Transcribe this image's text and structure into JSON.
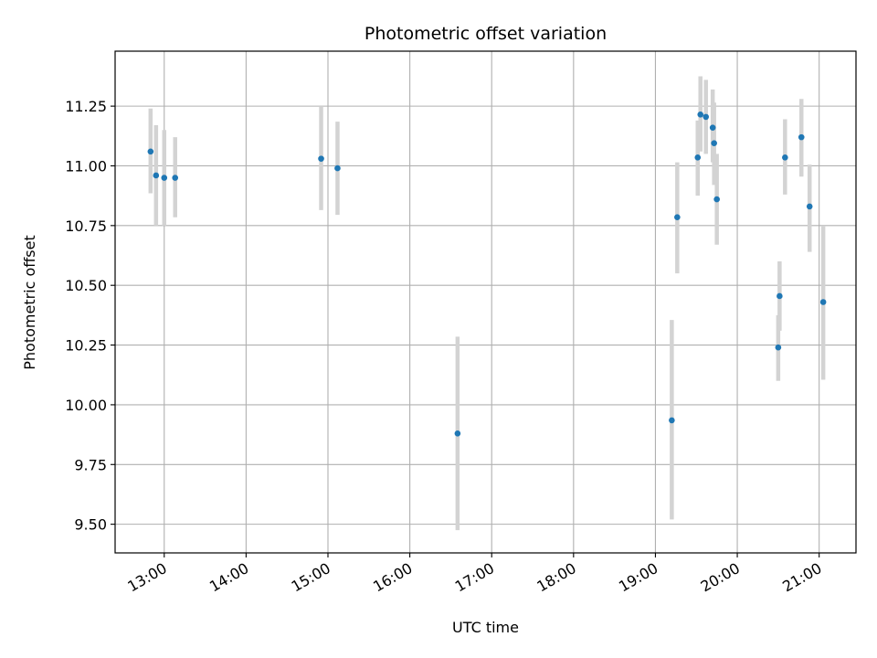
{
  "chart_data": {
    "type": "scatter",
    "title": "Photometric offset variation",
    "xlabel": "UTC time",
    "ylabel": "Photometric offset",
    "x_ticks": [
      "13:00",
      "14:00",
      "15:00",
      "16:00",
      "17:00",
      "18:00",
      "19:00",
      "20:00",
      "21:00"
    ],
    "y_ticks": [
      "9.50",
      "9.75",
      "10.00",
      "10.25",
      "10.50",
      "10.75",
      "11.00",
      "11.25"
    ],
    "xlim": [
      "12:24",
      "21:27"
    ],
    "ylim": [
      9.38,
      11.48
    ],
    "grid": true,
    "marker_color": "#1f77b4",
    "errorbar_color": "#d3d3d3",
    "points": [
      {
        "x": "12:50",
        "y": 11.06,
        "err_low": 10.885,
        "err_high": 11.24
      },
      {
        "x": "12:54",
        "y": 10.96,
        "err_low": 10.75,
        "err_high": 11.17
      },
      {
        "x": "13:00",
        "y": 10.95,
        "err_low": 10.75,
        "err_high": 11.15
      },
      {
        "x": "13:08",
        "y": 10.95,
        "err_low": 10.785,
        "err_high": 11.12
      },
      {
        "x": "14:55",
        "y": 11.03,
        "err_low": 10.815,
        "err_high": 11.25
      },
      {
        "x": "15:07",
        "y": 10.99,
        "err_low": 10.795,
        "err_high": 11.185
      },
      {
        "x": "16:35",
        "y": 9.88,
        "err_low": 9.475,
        "err_high": 10.285
      },
      {
        "x": "19:12",
        "y": 9.935,
        "err_low": 9.52,
        "err_high": 10.355
      },
      {
        "x": "19:16",
        "y": 10.785,
        "err_low": 10.55,
        "err_high": 11.015
      },
      {
        "x": "19:31",
        "y": 11.035,
        "err_low": 10.875,
        "err_high": 11.19
      },
      {
        "x": "19:33",
        "y": 11.215,
        "err_low": 11.06,
        "err_high": 11.375
      },
      {
        "x": "19:37",
        "y": 11.205,
        "err_low": 11.05,
        "err_high": 11.36
      },
      {
        "x": "19:42",
        "y": 11.16,
        "err_low": 11.015,
        "err_high": 11.32
      },
      {
        "x": "19:43",
        "y": 11.095,
        "err_low": 10.92,
        "err_high": 11.265
      },
      {
        "x": "19:45",
        "y": 10.86,
        "err_low": 10.67,
        "err_high": 11.05
      },
      {
        "x": "20:30",
        "y": 10.24,
        "err_low": 10.1,
        "err_high": 10.375
      },
      {
        "x": "20:31",
        "y": 10.455,
        "err_low": 10.31,
        "err_high": 10.6
      },
      {
        "x": "20:35",
        "y": 11.035,
        "err_low": 10.88,
        "err_high": 11.195
      },
      {
        "x": "20:47",
        "y": 11.12,
        "err_low": 10.955,
        "err_high": 11.28
      },
      {
        "x": "20:53",
        "y": 10.83,
        "err_low": 10.64,
        "err_high": 11.005
      },
      {
        "x": "21:03",
        "y": 10.43,
        "err_low": 10.105,
        "err_high": 10.75
      }
    ]
  }
}
